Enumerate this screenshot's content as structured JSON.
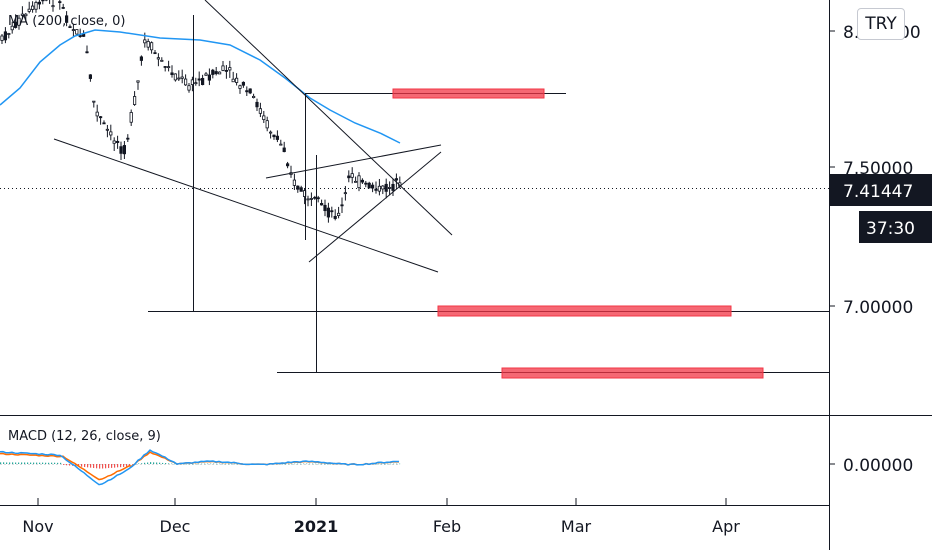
{
  "currency": "TRY",
  "indicators": {
    "ma_label": "MA (200, close, 0)",
    "macd_label": "MACD (12, 26, close, 9)"
  },
  "price_axis": {
    "ticks": [
      "8.00000",
      "7.50000",
      "7.00000"
    ],
    "top_tick_visible": "8.",
    "top_tick_tail": "00"
  },
  "macd_axis": {
    "ticks": [
      "0.00000"
    ]
  },
  "last_price": {
    "value": "7.41447",
    "countdown": "37:30"
  },
  "x_axis": {
    "labels": [
      "Nov",
      "Dec",
      "2021",
      "Feb",
      "Mar",
      "Apr"
    ]
  },
  "colors": {
    "candle": "#131722",
    "ma": "#2196f3",
    "macd_line": "#2196f3",
    "signal_line": "#ff6d00",
    "hist_pos": "#26a69a",
    "hist_neg": "#ef5350",
    "target_zone": "#f23645",
    "drawing": "#131722"
  },
  "chart_data": {
    "type": "candlestick",
    "symbol_currency": "TRY",
    "x_range": [
      "2020-10-23",
      "2021-04-20"
    ],
    "y_range": [
      6.57,
      8.12
    ],
    "overlays": [
      "MA (200, close, 0)"
    ],
    "drawings": [
      "descending channel",
      "symmetrical triangle",
      "horizontal target levels"
    ],
    "target_zones": [
      7.76,
      7.0,
      6.78
    ],
    "indicator": {
      "name": "MACD",
      "params": [
        12,
        26,
        9
      ],
      "zero_level": 0.0
    }
  }
}
